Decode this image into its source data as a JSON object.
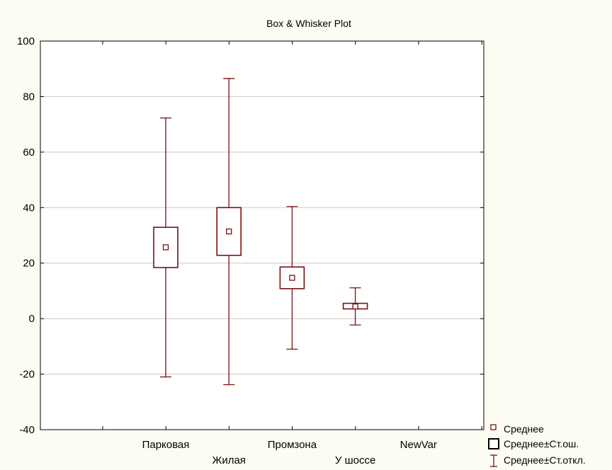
{
  "chart_data": {
    "type": "box",
    "title": "Box & Whisker Plot",
    "categories": [
      "Парковая",
      "Жилая",
      "Промзона",
      "У шоссе",
      "NewVar"
    ],
    "mean": [
      25.7,
      31.4,
      14.7,
      4.4,
      null
    ],
    "se_low": [
      18.4,
      22.8,
      10.8,
      3.5,
      null
    ],
    "se_high": [
      32.9,
      40.0,
      18.6,
      5.5,
      null
    ],
    "sd_low": [
      -21.0,
      -23.8,
      -11.0,
      -2.3,
      null
    ],
    "sd_high": [
      72.3,
      86.5,
      40.4,
      11.1,
      null
    ],
    "ylim": [
      -40,
      100
    ],
    "yticks": [
      -40,
      -20,
      0,
      20,
      40,
      60,
      80,
      100
    ],
    "grid": true,
    "legend_position": "bottom-right",
    "legend": [
      "Среднее",
      "Среднее±Ст.ош.",
      "Среднее±Ст.откл."
    ],
    "colors": {
      "series": "#7b1010",
      "background": "#fdfcf2",
      "plot": "#ffffff",
      "grid": "#c8c8c8"
    }
  }
}
